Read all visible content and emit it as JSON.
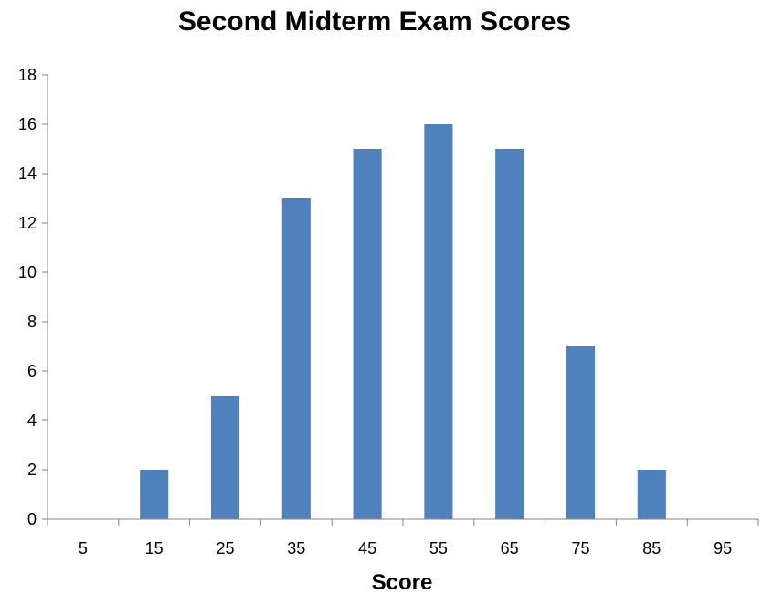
{
  "chart_data": {
    "type": "bar",
    "title": "Second Midterm Exam Scores",
    "xlabel": "Score",
    "ylabel": "",
    "categories": [
      "5",
      "15",
      "25",
      "35",
      "45",
      "55",
      "65",
      "75",
      "85",
      "95"
    ],
    "values": [
      0,
      2,
      5,
      13,
      15,
      16,
      15,
      7,
      2,
      0
    ],
    "ylim": [
      0,
      18
    ],
    "yticks": [
      "0",
      "2",
      "4",
      "6",
      "8",
      "10",
      "12",
      "14",
      "16",
      "18"
    ],
    "grid": false,
    "legend": "none",
    "bar_color": "#4F81BD"
  }
}
